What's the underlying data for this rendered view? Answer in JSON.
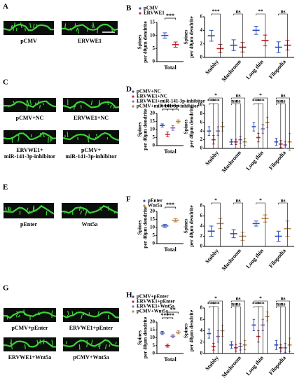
{
  "panels": [
    {
      "letter": "A",
      "captions": [
        [
          "pCMV"
        ],
        [
          "ERVWE1"
        ]
      ]
    },
    {
      "letter": "B"
    },
    {
      "letter": "C",
      "captions": [
        [
          "pCMV+NC"
        ],
        [
          "ERVWE1+NC"
        ],
        [
          "ERVWE1+",
          "miR-141-3p-inhibitor"
        ],
        [
          "pCMV+",
          "miR-141-3p-inhibitor"
        ]
      ]
    },
    {
      "letter": "D"
    },
    {
      "letter": "E",
      "captions": [
        [
          "pEnter"
        ],
        [
          "Wnt5a"
        ]
      ]
    },
    {
      "letter": "F"
    },
    {
      "letter": "G",
      "captions": [
        [
          "pCMV+pEnter"
        ],
        [
          "ERVWE1+pEnter"
        ],
        [
          "ERVWE1+Wnt5a"
        ],
        [
          "pCMV+Wnt5a"
        ]
      ]
    },
    {
      "letter": "H"
    }
  ],
  "chart_data": [
    {
      "type": "dot",
      "ylabel": [
        "Spines",
        "per 40μm dendrite"
      ],
      "categories": [
        "Total"
      ],
      "ylim": [
        0,
        15
      ],
      "yticks": [
        0,
        5,
        10,
        15
      ],
      "series": [
        {
          "name": "pCMV",
          "color": "#2f4fb5",
          "values": [
            10
          ],
          "errors": [
            1
          ]
        },
        {
          "name": "ERVWE1",
          "color": "#c0282d",
          "values": [
            6.5
          ],
          "errors": [
            1
          ]
        }
      ],
      "significance": [
        {
          "text": "***",
          "from": 0,
          "to": 1
        }
      ]
    },
    {
      "type": "dot",
      "ylabel": [
        "Spines",
        "per 40μm dendrite"
      ],
      "categories": [
        "Stubby",
        "Mushroom",
        "Long thin",
        "Filopodia"
      ],
      "ylim": [
        0,
        6
      ],
      "yticks": [
        0,
        2,
        4,
        6
      ],
      "series": [
        {
          "color": "#2f4fb5",
          "values": [
            3.2,
            1.8,
            4,
            1.5
          ],
          "errors": [
            0.8,
            0.8,
            0.6,
            0.8
          ]
        },
        {
          "color": "#c0282d",
          "values": [
            1.3,
            1.5,
            2.5,
            1.8
          ],
          "errors": [
            0.6,
            0.7,
            0.8,
            0.7
          ]
        }
      ],
      "significance": [
        [
          "***"
        ],
        [
          "ns"
        ],
        [
          "**"
        ],
        [
          "ns"
        ]
      ]
    },
    {
      "type": "dot",
      "ylabel": [
        "Spines",
        "per 40μm dendrite"
      ],
      "categories": [
        "Total"
      ],
      "ylim": [
        0,
        20
      ],
      "yticks": [
        0,
        5,
        10,
        15,
        20
      ],
      "series": [
        {
          "name": "pCMV+NC",
          "color": "#2f4fb5",
          "values": [
            12.5
          ],
          "errors": [
            1
          ]
        },
        {
          "name": "ERVWE1+NC",
          "color": "#c0282d",
          "values": [
            7
          ],
          "errors": [
            1.5
          ]
        },
        {
          "name": "ERVWE1+miR-141-3p-inhibitor",
          "color": "#8a6bb8",
          "values": [
            11
          ],
          "errors": [
            1.5
          ]
        },
        {
          "name": "pCMV+miR-141-3p-inhibitor",
          "color": "#b8864b",
          "values": [
            15
          ],
          "errors": [
            1
          ]
        }
      ],
      "significance": [
        {
          "text": "***",
          "from": 0,
          "to": 1
        },
        {
          "text": "***",
          "from": 1,
          "to": 2
        },
        {
          "text": "***",
          "from": 2,
          "to": 3
        }
      ]
    },
    {
      "type": "dot",
      "ylabel": [
        "Spines",
        "per 40μm dendrite"
      ],
      "categories": [
        "Stubby",
        "Mushroom",
        "Long thin",
        "Filopodia"
      ],
      "ylim": [
        0,
        10
      ],
      "yticks": [
        0,
        2,
        4,
        6,
        8,
        10
      ],
      "series": [
        {
          "color": "#2f4fb5",
          "values": [
            4,
            1.5,
            5,
            1.5
          ],
          "errors": [
            1,
            0.6,
            1,
            0.8
          ]
        },
        {
          "color": "#c0282d",
          "values": [
            2,
            1.5,
            2.5,
            1
          ],
          "errors": [
            1,
            0.6,
            1,
            0.8
          ]
        },
        {
          "color": "#8a6bb8",
          "values": [
            4,
            2,
            4.5,
            0.8
          ],
          "errors": [
            1,
            0.8,
            1,
            0.8
          ]
        },
        {
          "color": "#b8864b",
          "values": [
            5,
            1.5,
            6,
            1.5
          ],
          "errors": [
            1,
            0.8,
            1.2,
            2
          ]
        }
      ],
      "significance": [
        [
          "*",
          "***",
          "***"
        ],
        [
          "ns",
          "ns",
          "ns"
        ],
        [
          "*",
          "***",
          "***"
        ],
        [
          "ns",
          "ns",
          "ns"
        ]
      ]
    },
    {
      "type": "dot",
      "ylabel": [
        "Spines",
        "per 40μm dendrite"
      ],
      "categories": [
        "Total"
      ],
      "ylim": [
        0,
        20
      ],
      "yticks": [
        0,
        5,
        10,
        15,
        20
      ],
      "series": [
        {
          "name": "pEnter",
          "color": "#2f4fb5",
          "values": [
            11
          ],
          "errors": [
            1
          ]
        },
        {
          "name": "Wnt5a",
          "color": "#b8864b",
          "values": [
            14.5
          ],
          "errors": [
            1
          ]
        }
      ],
      "significance": [
        {
          "text": "***",
          "from": 0,
          "to": 1
        }
      ]
    },
    {
      "type": "dot",
      "ylabel": [
        "Spines",
        "per 40μm dendrite"
      ],
      "categories": [
        "Stubby",
        "Mushroom",
        "Long thin",
        "Filopodia"
      ],
      "ylim": [
        0,
        8
      ],
      "yticks": [
        0,
        2,
        4,
        6,
        8
      ],
      "series": [
        {
          "color": "#2f4fb5",
          "values": [
            3,
            2.5,
            4.5,
            2
          ],
          "errors": [
            1,
            0.8,
            0.5,
            1
          ]
        },
        {
          "color": "#b8864b",
          "values": [
            4.5,
            2,
            5.5,
            3.5
          ],
          "errors": [
            1,
            0.8,
            0.7,
            1.5
          ]
        }
      ],
      "significance": [
        [
          "*"
        ],
        [
          "ns"
        ],
        [
          "*"
        ],
        [
          "ns"
        ]
      ]
    },
    {
      "type": "dot",
      "ylabel": [
        "Spines",
        "per 40μm dendrite"
      ],
      "categories": [
        "Total"
      ],
      "ylim": [
        0,
        20
      ],
      "yticks": [
        0,
        5,
        10,
        15,
        20
      ],
      "series": [
        {
          "name": "pCMV+pEnter",
          "color": "#2f4fb5",
          "values": [
            13
          ],
          "errors": [
            1
          ]
        },
        {
          "name": "ERVWE1+pEnter",
          "color": "#c0282d",
          "values": [
            5
          ],
          "errors": [
            1
          ]
        },
        {
          "name": "ERVWE1+Wnt5a",
          "color": "#8a6bb8",
          "values": [
            11
          ],
          "errors": [
            1
          ]
        },
        {
          "name": "pCMV+Wnt5a",
          "color": "#b8864b",
          "values": [
            13.5
          ],
          "errors": [
            1
          ]
        }
      ],
      "significance": [
        {
          "text": "**",
          "from": 1,
          "to": 3
        },
        {
          "text": "***",
          "from": 0,
          "to": 1
        },
        {
          "text": "***",
          "from": 1,
          "to": 2
        }
      ]
    },
    {
      "type": "dot",
      "ylabel": [
        "Spines",
        "per 40μm dendrite"
      ],
      "categories": [
        "Stubby",
        "Mushroom",
        "Long thin",
        "Filopodia"
      ],
      "ylim": [
        0,
        8
      ],
      "yticks": [
        0,
        2,
        4,
        6,
        8
      ],
      "series": [
        {
          "color": "#2f4fb5",
          "values": [
            3.5,
            1.5,
            5,
            1.5
          ],
          "errors": [
            0.8,
            0.6,
            1,
            0.8
          ]
        },
        {
          "color": "#c0282d",
          "values": [
            1.2,
            1,
            3,
            1
          ],
          "errors": [
            0.6,
            0.6,
            1,
            0.6
          ]
        },
        {
          "color": "#8a6bb8",
          "values": [
            3,
            1.2,
            5,
            1
          ],
          "errors": [
            1,
            0.6,
            1,
            0.8
          ]
        },
        {
          "color": "#b8864b",
          "values": [
            4,
            1.5,
            6.5,
            1.5
          ],
          "errors": [
            1,
            0.8,
            0.8,
            1.2
          ]
        }
      ],
      "significance": [
        [
          "*",
          "***",
          "***"
        ],
        [
          "ns",
          "ns",
          "ns"
        ],
        [
          "*",
          "***",
          "***"
        ],
        [
          "ns",
          "ns",
          "ns"
        ]
      ]
    }
  ]
}
